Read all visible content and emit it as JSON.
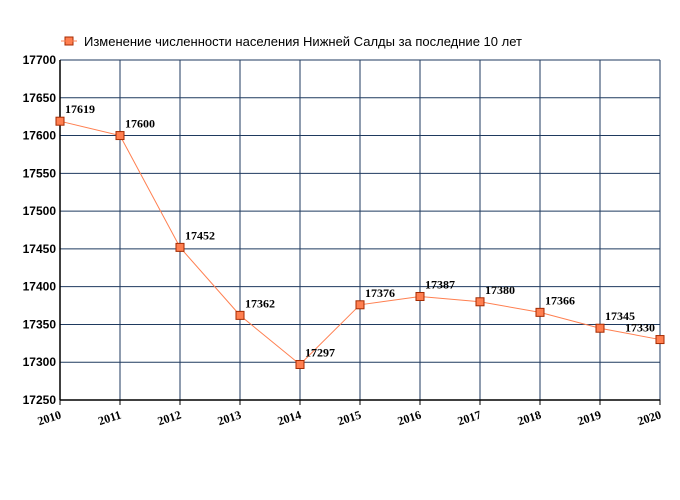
{
  "chart_data": {
    "type": "line",
    "title": "",
    "legend": {
      "placement": "top",
      "entries": [
        "Изменение численности населения Нижней Салды за последние 10 лет"
      ]
    },
    "x": [
      "2010",
      "2011",
      "2012",
      "2013",
      "2014",
      "2015",
      "2016",
      "2017",
      "2018",
      "2019",
      "2020"
    ],
    "series": [
      {
        "name": "Изменение численности населения Нижней Салды за последние 10 лет",
        "values": [
          17619,
          17600,
          17452,
          17362,
          17297,
          17376,
          17387,
          17380,
          17366,
          17345,
          17330
        ],
        "color": "#ff7f50",
        "marker_fill": "#ff7f50",
        "marker_stroke": "#a52a00"
      }
    ],
    "ylim": [
      17250,
      17700
    ],
    "yticks": [
      17250,
      17300,
      17350,
      17400,
      17450,
      17500,
      17550,
      17600,
      17650,
      17700
    ],
    "grid": true,
    "grid_color": "#1f3a5f",
    "xlabel": "",
    "ylabel": ""
  }
}
